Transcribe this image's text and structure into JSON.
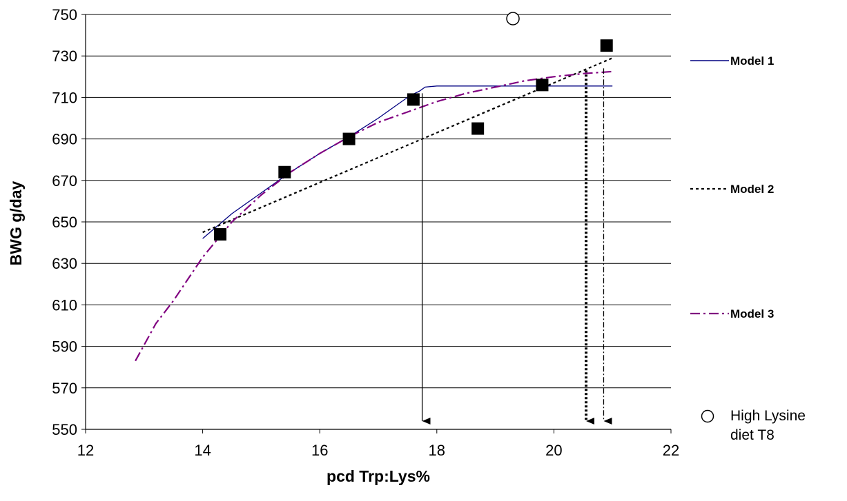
{
  "chart_data": {
    "type": "scatter",
    "title": "",
    "xlabel": "pcd Trp:Lys%",
    "ylabel": "BWG g/day",
    "xlim": [
      12,
      22
    ],
    "ylim": [
      550,
      750
    ],
    "xticks": [
      12,
      14,
      16,
      18,
      20,
      22
    ],
    "yticks": [
      550,
      570,
      590,
      610,
      630,
      650,
      670,
      690,
      710,
      730,
      750
    ],
    "grid": "horizontal",
    "observed": {
      "x": [
        14.3,
        15.4,
        16.5,
        17.6,
        18.7,
        19.8,
        20.9
      ],
      "y": [
        644,
        674,
        690,
        709,
        695,
        716,
        735
      ]
    },
    "high_lysine": {
      "label_line1": "High Lysine",
      "label_line2": "diet T8",
      "x": 19.3,
      "y": 748
    },
    "series": [
      {
        "name": "Model 1",
        "color": "#000080",
        "style": "solid",
        "x": [
          14.0,
          14.5,
          15.0,
          15.5,
          16.0,
          16.5,
          17.0,
          17.3,
          17.55,
          17.7,
          17.8,
          18.0,
          19.0,
          20.0,
          21.0
        ],
        "y": [
          642,
          654,
          664,
          674,
          683,
          691,
          700,
          706,
          711,
          713,
          715,
          715.5,
          715.5,
          715.5,
          715.5
        ]
      },
      {
        "name": "Model 2",
        "color": "#000000",
        "style": "dashed",
        "x": [
          14.0,
          21.0
        ],
        "y": [
          645,
          729
        ]
      },
      {
        "name": "Model 3",
        "color": "#800080",
        "style": "dashdot",
        "x": [
          12.85,
          13.2,
          13.5,
          14.0,
          14.5,
          15.0,
          15.5,
          16.0,
          16.5,
          17.0,
          17.5,
          18.0,
          18.5,
          19.0,
          19.5,
          20.0,
          20.5,
          21.0
        ],
        "y": [
          583,
          601,
          612,
          633,
          650,
          663,
          674,
          683,
          691,
          698,
          703,
          708,
          712,
          715,
          718,
          720,
          721.5,
          722.5
        ]
      }
    ],
    "arrows": [
      {
        "x": 17.75,
        "from_y": 712,
        "style": "solid"
      },
      {
        "x": 20.55,
        "from_y": 723,
        "style": "dotted"
      },
      {
        "x": 20.85,
        "from_y": 724,
        "style": "dashdot"
      }
    ]
  }
}
